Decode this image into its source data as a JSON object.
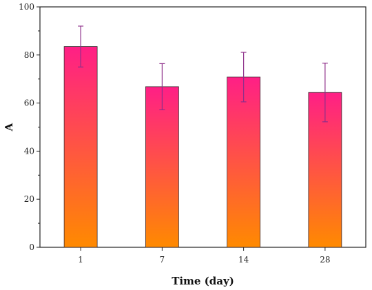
{
  "chart_data": {
    "type": "bar",
    "title": "",
    "xlabel": "Time (day)",
    "ylabel": "A",
    "categories": [
      "1",
      "7",
      "14",
      "28"
    ],
    "values": [
      83.5,
      66.8,
      70.8,
      64.4
    ],
    "errors": [
      8.5,
      9.6,
      10.3,
      12.2
    ],
    "ylim": [
      0,
      100
    ],
    "yticks": [
      0,
      20,
      40,
      60,
      80,
      100
    ],
    "grid": false,
    "legend": "none",
    "colors": {
      "bar_top": "#ff1f86",
      "bar_bottom": "#ff8a00",
      "error_bar": "#8e2f8a",
      "axis": "#222222"
    }
  }
}
